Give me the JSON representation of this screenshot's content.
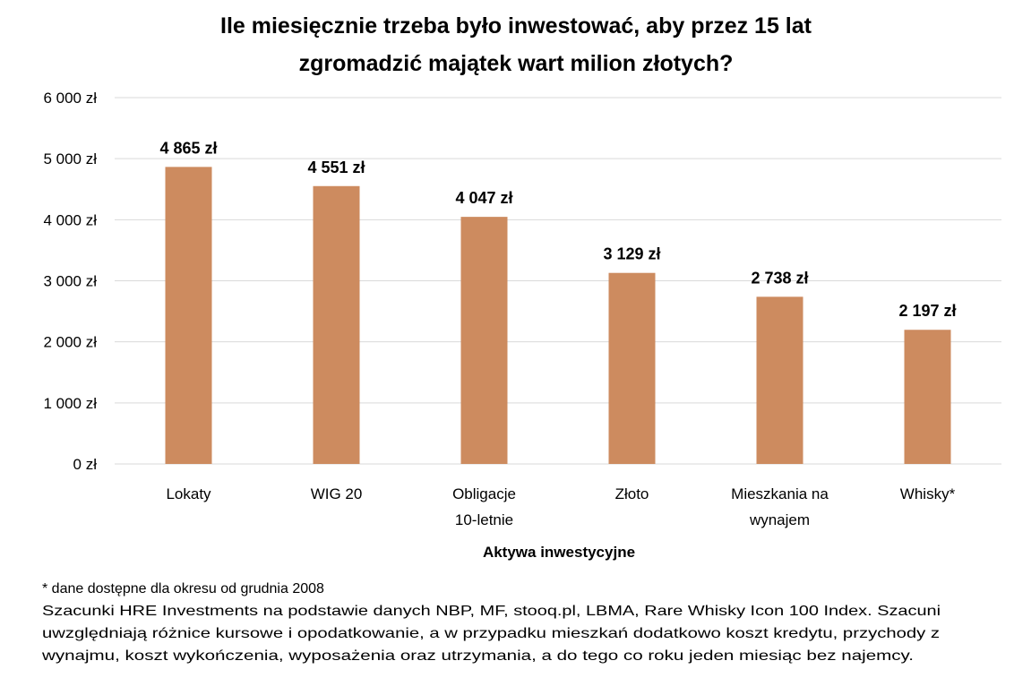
{
  "chart_data": {
    "type": "bar",
    "title": [
      "Ile miesięcznie trzeba było inwestować, aby przez 15 lat",
      "zgromadzić majątek wart milion złotych?"
    ],
    "xlabel": "Aktywa inwestycyjne",
    "ylabel": "",
    "categories": [
      [
        "Lokaty"
      ],
      [
        "WIG 20"
      ],
      [
        "Obligacje",
        "10-letnie"
      ],
      [
        "Złoto"
      ],
      [
        "Mieszkania na",
        "wynajem"
      ],
      [
        "Whisky*"
      ]
    ],
    "values": [
      4865,
      4551,
      4047,
      3129,
      2738,
      2197
    ],
    "data_labels": [
      "4 865 zł",
      "4 551 zł",
      "4 047 zł",
      "3 129 zł",
      "2 738 zł",
      "2 197 zł"
    ],
    "ylim": [
      0,
      6000
    ],
    "yticks": [
      0,
      1000,
      2000,
      3000,
      4000,
      5000,
      6000
    ],
    "ytick_labels": [
      "0 zł",
      "1 000 zł",
      "2 000 zł",
      "3 000 zł",
      "4 000 zł",
      "5 000 zł",
      "6 000 zł"
    ],
    "grid": true,
    "bar_color": "#CD8B5F",
    "grid_color": "#D9D9D9"
  },
  "footnotes": [
    "* dane dostępne dla okresu od grudnia 2008",
    "Szacunki HRE Investments na podstawie danych NBP, MF, stooq.pl, LBMA, Rare Whisky Icon 100 Index. Szacuni",
    "uwzględniają różnice kursowe i opodatkowanie, a w przypadku mieszkań dodatkowo koszt kredytu, przychody z",
    "wynajmu, koszt wykończenia, wyposażenia oraz utrzymania, a do tego co roku jeden miesiąc bez najemcy."
  ]
}
